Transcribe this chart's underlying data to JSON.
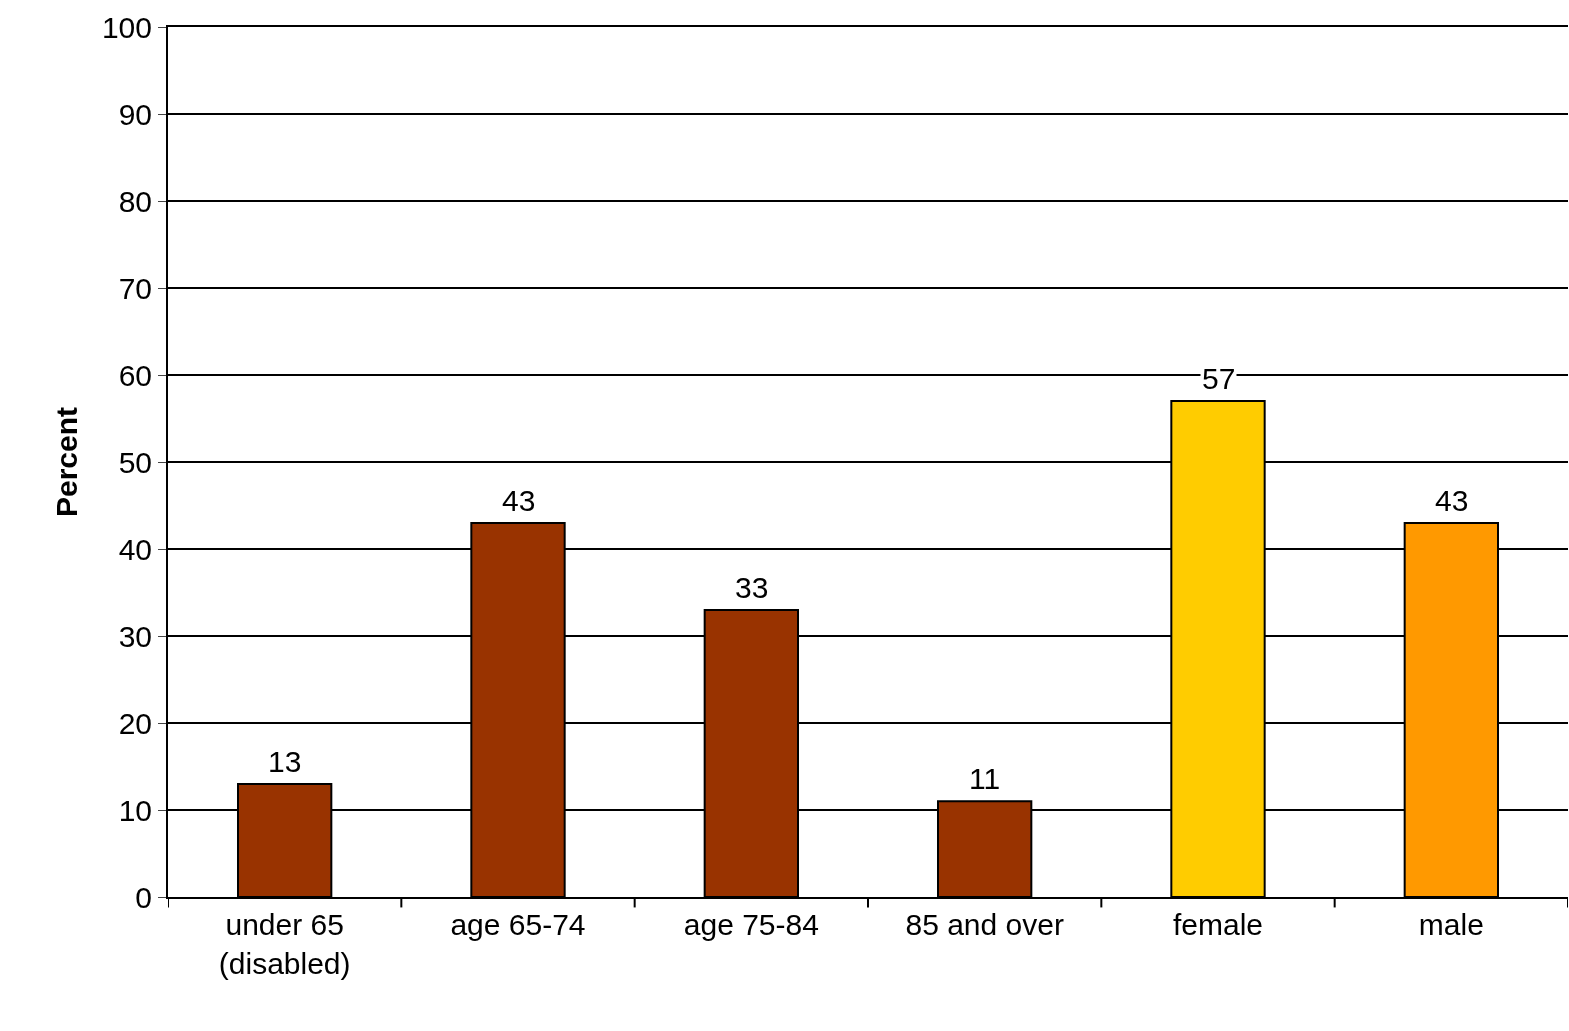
{
  "chart_data": {
    "type": "bar",
    "ylabel": "Percent",
    "categories": [
      "under 65\n(disabled)",
      "age 65-74",
      "age 75-84",
      "85 and over",
      "female",
      "male"
    ],
    "values": [
      13,
      43,
      33,
      11,
      57,
      43
    ],
    "colors": [
      "#993300",
      "#993300",
      "#993300",
      "#993300",
      "#ffcc00",
      "#ff9900"
    ],
    "ylim": [
      0,
      100
    ],
    "yticks": [
      0,
      10,
      20,
      30,
      40,
      50,
      60,
      70,
      80,
      90,
      100
    ],
    "grid": "y",
    "data_labels": true
  }
}
